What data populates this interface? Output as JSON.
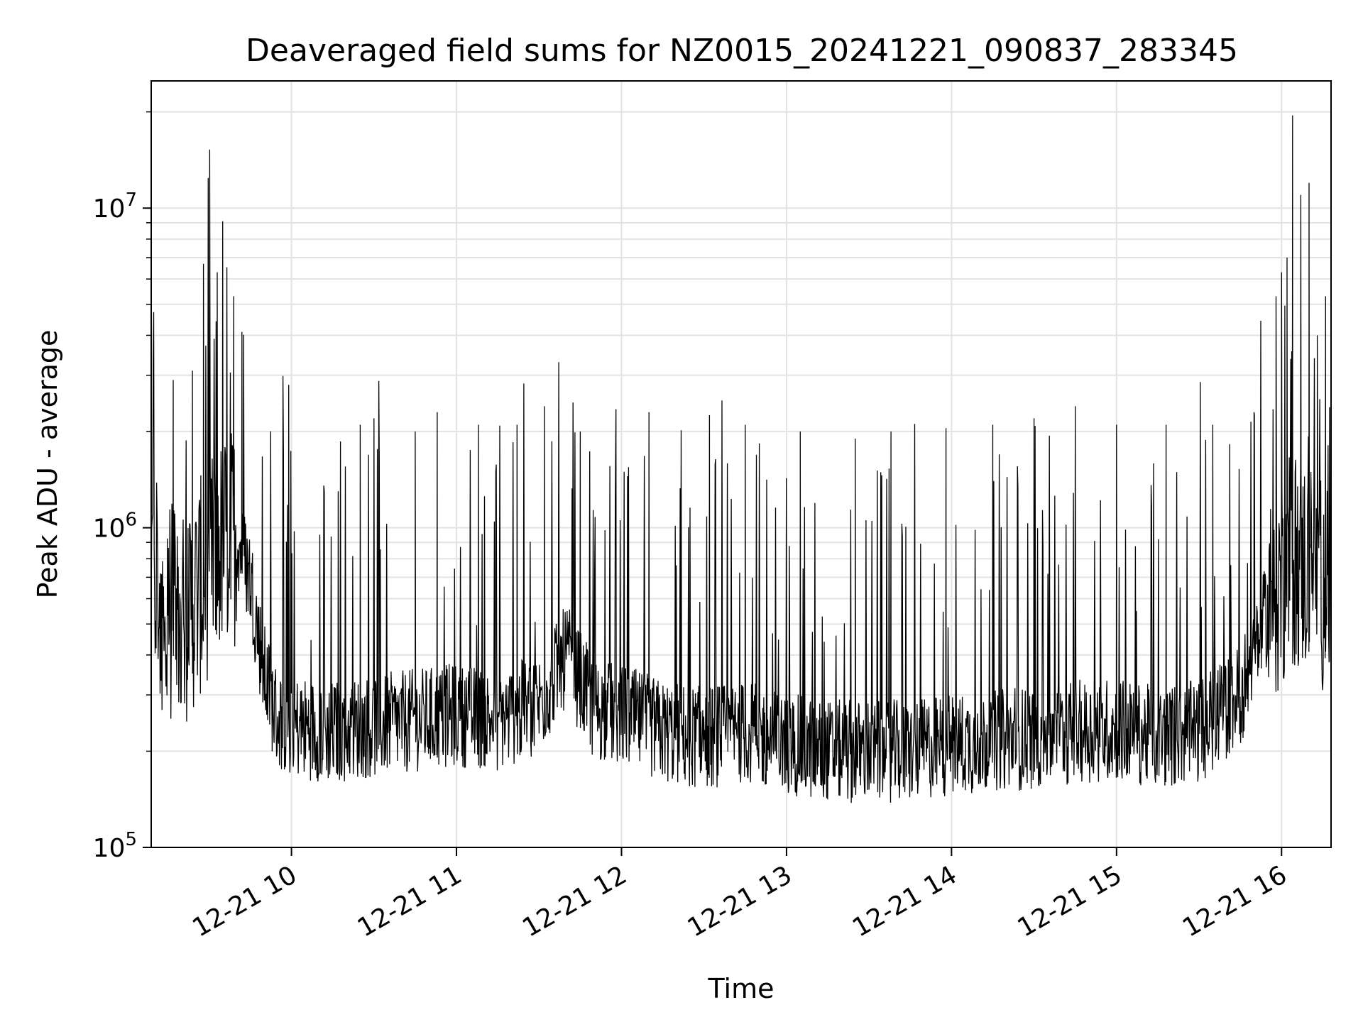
{
  "chart_data": {
    "type": "line",
    "title": "Deaveraged field sums for NZ0015_20241221_090837_283345",
    "xlabel": "Time",
    "ylabel": "Peak ADU - average",
    "yscale": "log",
    "ylim": [
      100000,
      25000000
    ],
    "xlim": [
      "2024-12-21 09:09",
      "2024-12-21 16:18"
    ],
    "x_ticks": [
      "12-21 10",
      "12-21 11",
      "12-21 12",
      "12-21 13",
      "12-21 14",
      "12-21 15",
      "12-21 16"
    ],
    "y_ticks": [
      {
        "base": "10",
        "exp": "5",
        "value": 100000
      },
      {
        "base": "10",
        "exp": "6",
        "value": 1000000
      },
      {
        "base": "10",
        "exp": "7",
        "value": 10000000
      }
    ],
    "grid": true,
    "legend": "none",
    "line_color": "#000000",
    "series": [
      {
        "x": [
          "2024-12-21 09:09",
          "2024-12-21 09:15",
          "2024-12-21 09:20",
          "2024-12-21 09:25",
          "2024-12-21 09:30",
          "2024-12-21 09:35",
          "2024-12-21 09:40",
          "2024-12-21 09:45",
          "2024-12-21 09:50",
          "2024-12-21 09:55",
          "2024-12-21 10:00",
          "2024-12-21 10:15",
          "2024-12-21 10:30",
          "2024-12-21 10:45",
          "2024-12-21 11:00",
          "2024-12-21 11:15",
          "2024-12-21 11:30",
          "2024-12-21 11:40",
          "2024-12-21 11:50",
          "2024-12-21 12:00",
          "2024-12-21 12:15",
          "2024-12-21 12:30",
          "2024-12-21 12:45",
          "2024-12-21 13:00",
          "2024-12-21 13:15",
          "2024-12-21 13:30",
          "2024-12-21 13:45",
          "2024-12-21 14:00",
          "2024-12-21 14:15",
          "2024-12-21 14:30",
          "2024-12-21 14:45",
          "2024-12-21 15:00",
          "2024-12-21 15:15",
          "2024-12-21 15:30",
          "2024-12-21 15:45",
          "2024-12-21 15:55",
          "2024-12-21 16:00",
          "2024-12-21 16:05",
          "2024-12-21 16:10",
          "2024-12-21 16:18"
        ],
        "baseline": [
          700000,
          550000,
          500000,
          600000,
          750000,
          900000,
          950000,
          700000,
          350000,
          250000,
          240000,
          230000,
          240000,
          250000,
          260000,
          250000,
          280000,
          400000,
          270000,
          260000,
          230000,
          220000,
          230000,
          210000,
          200000,
          200000,
          200000,
          210000,
          215000,
          220000,
          230000,
          235000,
          220000,
          230000,
          300000,
          550000,
          700000,
          800000,
          750000,
          650000
        ],
        "peaks": [
          [
            "2024-12-21 09:17",
            2900000
          ],
          [
            "2024-12-21 09:24",
            3100000
          ],
          [
            "2024-12-21 09:28",
            6700000
          ],
          [
            "2024-12-21 09:33",
            6300000
          ],
          [
            "2024-12-21 09:35",
            9100000
          ],
          [
            "2024-12-21 09:39",
            5300000
          ],
          [
            "2024-12-21 09:42",
            4100000
          ],
          [
            "2024-12-21 09:59",
            2800000
          ],
          [
            "2024-12-21 10:17",
            1300000
          ],
          [
            "2024-12-21 10:25",
            2100000
          ],
          [
            "2024-12-21 10:30",
            2200000
          ],
          [
            "2024-12-21 10:45",
            2000000
          ],
          [
            "2024-12-21 10:53",
            2300000
          ],
          [
            "2024-12-21 11:08",
            2100000
          ],
          [
            "2024-12-21 11:22",
            2100000
          ],
          [
            "2024-12-21 11:32",
            2400000
          ],
          [
            "2024-12-21 11:45",
            2000000
          ],
          [
            "2024-12-21 11:58",
            2350000
          ],
          [
            "2024-12-21 12:10",
            2300000
          ],
          [
            "2024-12-21 12:32",
            2250000
          ],
          [
            "2024-12-21 12:45",
            2100000
          ],
          [
            "2024-12-21 13:05",
            2000000
          ],
          [
            "2024-12-21 13:25",
            1900000
          ],
          [
            "2024-12-21 13:38",
            2000000
          ],
          [
            "2024-12-21 13:58",
            2050000
          ],
          [
            "2024-12-21 14:15",
            2100000
          ],
          [
            "2024-12-21 14:30",
            2200000
          ],
          [
            "2024-12-21 14:45",
            2400000
          ],
          [
            "2024-12-21 15:00",
            2100000
          ],
          [
            "2024-12-21 15:18",
            2100000
          ],
          [
            "2024-12-21 15:35",
            2100000
          ],
          [
            "2024-12-21 15:50",
            2300000
          ],
          [
            "2024-12-21 15:58",
            5300000
          ],
          [
            "2024-12-21 16:00",
            6300000
          ],
          [
            "2024-12-21 16:02",
            7000000
          ],
          [
            "2024-12-21 16:04",
            19500000
          ],
          [
            "2024-12-21 16:07",
            11000000
          ],
          [
            "2024-12-21 16:10",
            12000000
          ],
          [
            "2024-12-21 16:13",
            4000000
          ],
          [
            "2024-12-21 16:16",
            5300000
          ]
        ]
      }
    ]
  }
}
